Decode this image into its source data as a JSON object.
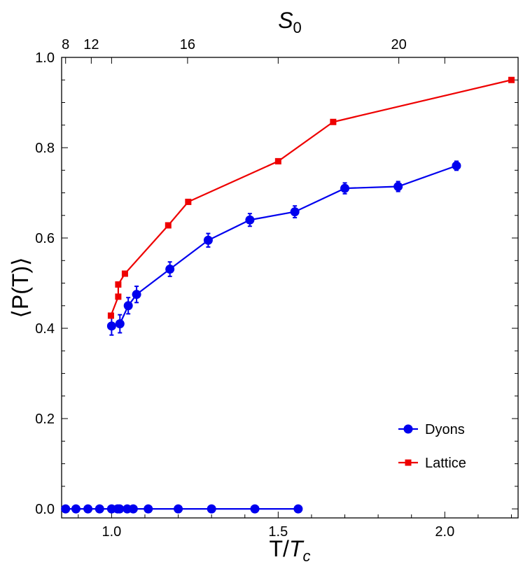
{
  "chart_data": {
    "type": "line",
    "xlabel": "T/T_c",
    "ylabel": "⟨P(T)⟩",
    "top_xlabel": "S_0",
    "xlim": [
      0.85,
      2.22
    ],
    "ylim": [
      -0.02,
      1.0
    ],
    "x_ticks": [
      1.0,
      1.5,
      2.0
    ],
    "x_tick_labels": [
      "1.0",
      "1.5",
      "2.0"
    ],
    "y_ticks": [
      0.0,
      0.2,
      0.4,
      0.6,
      0.8,
      1.0
    ],
    "y_tick_labels": [
      "0.0",
      "0.2",
      "0.4",
      "0.6",
      "0.8",
      "1.0"
    ],
    "top_ticks": [
      {
        "label": "8",
        "x": 0.862
      },
      {
        "label": "12",
        "x": 0.939
      },
      {
        "label": "16",
        "x": 1.228
      },
      {
        "label": "20",
        "x": 1.862
      }
    ],
    "legend_position": "bottom-right",
    "grid": false,
    "series": [
      {
        "name": "Dyons",
        "color": "#0000ee",
        "marker": "circle",
        "x": [
          0.862,
          0.893,
          0.929,
          0.964,
          1.0,
          1.018,
          1.024,
          1.047,
          1.065,
          1.11,
          1.2,
          1.3,
          1.43,
          1.56
        ],
        "y": [
          0.0,
          0.0,
          0.0,
          0.0,
          0.0,
          0.0,
          0.0,
          0.0,
          0.0,
          0.0,
          0.0,
          0.0,
          0.0,
          0.0
        ],
        "err": []
      },
      {
        "name": "Dyons",
        "color": "#0000ee",
        "marker": "circle",
        "x": [
          1.0,
          1.025,
          1.05,
          1.075,
          1.175,
          1.29,
          1.415,
          1.55,
          1.7,
          1.86,
          2.035
        ],
        "y": [
          0.405,
          0.41,
          0.45,
          0.475,
          0.531,
          0.595,
          0.64,
          0.658,
          0.71,
          0.714,
          0.76
        ],
        "err": [
          0.02,
          0.02,
          0.018,
          0.018,
          0.016,
          0.015,
          0.014,
          0.013,
          0.012,
          0.011,
          0.01
        ]
      },
      {
        "name": "Lattice",
        "color": "#ee0000",
        "marker": "square",
        "x": [
          0.998,
          1.02,
          1.02,
          1.04,
          1.17,
          1.23,
          1.5,
          1.665,
          2.2
        ],
        "y": [
          0.428,
          0.47,
          0.497,
          0.521,
          0.628,
          0.68,
          0.77,
          0.857,
          0.95
        ],
        "err": []
      }
    ]
  }
}
